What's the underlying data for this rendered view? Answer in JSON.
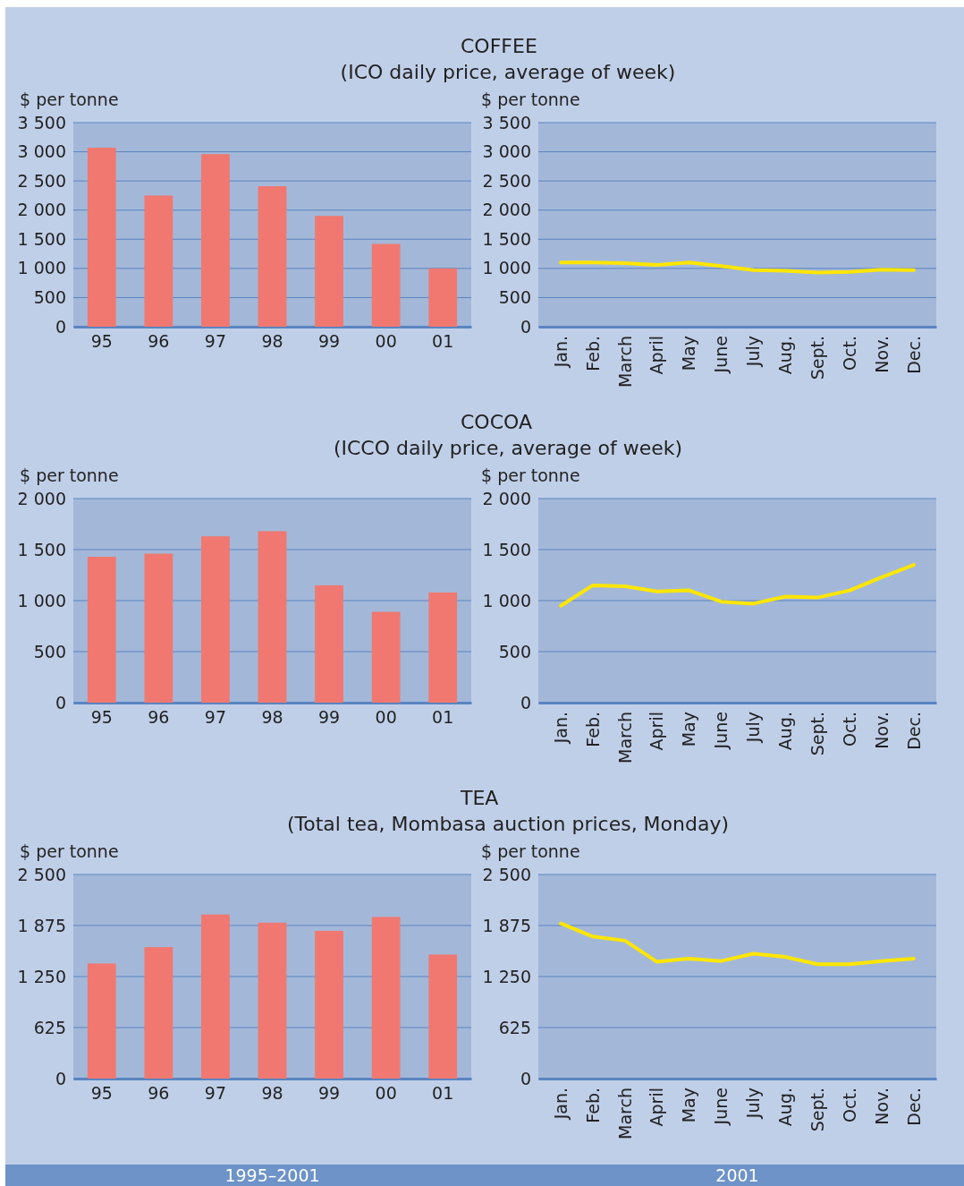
{
  "chart_data": [
    {
      "type": "bar",
      "title": "COFFEE",
      "subtitle": "(ICO daily price, average of week)",
      "ylabel": "$ per tonne",
      "categories": [
        "95",
        "96",
        "97",
        "98",
        "99",
        "00",
        "01"
      ],
      "values": [
        3070,
        2250,
        2960,
        2410,
        1900,
        1420,
        1000
      ],
      "color": "#f07870",
      "ylim": [
        0,
        3500
      ],
      "yticks": [
        0,
        500,
        {
          "value": 1000,
          "label": "1 000"
        },
        {
          "value": 1500,
          "label": "1 500"
        },
        {
          "value": 2000,
          "label": "2 000"
        },
        {
          "value": 2500,
          "label": "2 500"
        },
        {
          "value": 3000,
          "label": "3 000"
        },
        {
          "value": 3500,
          "label": "3 500"
        }
      ],
      "grid": "y"
    },
    {
      "type": "line",
      "ylabel": "$ per tonne",
      "categories": [
        "Jan.",
        "Feb.",
        "March",
        "April",
        "May",
        "June",
        "July",
        "Aug.",
        "Sept.",
        "Oct.",
        "Nov.",
        "Dec."
      ],
      "values": [
        1100,
        1100,
        1090,
        1060,
        1100,
        1040,
        970,
        960,
        930,
        940,
        980,
        970
      ],
      "color": "#ffe600",
      "ylim": [
        0,
        3500
      ],
      "yticks": [
        0,
        500,
        {
          "value": 1000,
          "label": "1 000"
        },
        {
          "value": 1500,
          "label": "1 500"
        },
        {
          "value": 2000,
          "label": "2 000"
        },
        {
          "value": 2500,
          "label": "2 500"
        },
        {
          "value": 3000,
          "label": "3 000"
        },
        {
          "value": 3500,
          "label": "3 500"
        }
      ],
      "grid": "y"
    },
    {
      "type": "bar",
      "title": "COCOA",
      "subtitle": "(ICCO daily price, average of week)",
      "ylabel": "$ per tonne",
      "categories": [
        "95",
        "96",
        "97",
        "98",
        "99",
        "00",
        "01"
      ],
      "values": [
        1430,
        1460,
        1630,
        1680,
        1150,
        890,
        1080
      ],
      "color": "#f07870",
      "ylim": [
        0,
        2000
      ],
      "yticks": [
        0,
        500,
        {
          "value": 1000,
          "label": "1 000"
        },
        {
          "value": 1500,
          "label": "1 500"
        },
        {
          "value": 2000,
          "label": "2 000"
        }
      ],
      "grid": "y"
    },
    {
      "type": "line",
      "ylabel": "$ per tonne",
      "categories": [
        "Jan.",
        "Feb.",
        "March",
        "April",
        "May",
        "June",
        "July",
        "Aug.",
        "Sept.",
        "Oct.",
        "Nov.",
        "Dec."
      ],
      "values": [
        950,
        1150,
        1140,
        1090,
        1100,
        990,
        970,
        1040,
        1030,
        1100,
        1230,
        1350
      ],
      "color": "#ffe600",
      "ylim": [
        0,
        2000
      ],
      "yticks": [
        0,
        500,
        {
          "value": 1000,
          "label": "1 000"
        },
        {
          "value": 1500,
          "label": "1 500"
        },
        {
          "value": 2000,
          "label": "2 000"
        }
      ],
      "grid": "y"
    },
    {
      "type": "bar",
      "title": "TEA",
      "subtitle": "(Total tea, Mombasa auction prices, Monday)",
      "ylabel": "$ per tonne",
      "categories": [
        "95",
        "96",
        "97",
        "98",
        "99",
        "00",
        "01"
      ],
      "values": [
        1410,
        1610,
        2010,
        1910,
        1810,
        1980,
        1520
      ],
      "color": "#f07870",
      "ylim": [
        0,
        2500
      ],
      "yticks": [
        0,
        625,
        {
          "value": 1250,
          "label": "1 250"
        },
        {
          "value": 1875,
          "label": "1 875"
        },
        {
          "value": 2500,
          "label": "2 500"
        }
      ],
      "grid": "y",
      "annotations": [
        "1995–2001"
      ]
    },
    {
      "type": "line",
      "ylabel": "$ per tonne",
      "categories": [
        "Jan.",
        "Feb.",
        "March",
        "April",
        "May",
        "June",
        "July",
        "Aug.",
        "Sept.",
        "Oct.",
        "Nov.",
        "Dec."
      ],
      "values": [
        1900,
        1740,
        1690,
        1430,
        1470,
        1440,
        1530,
        1490,
        1400,
        1400,
        1440,
        1470
      ],
      "color": "#ffe600",
      "ylim": [
        0,
        2500
      ],
      "yticks": [
        0,
        625,
        {
          "value": 1250,
          "label": "1 250"
        },
        {
          "value": 1875,
          "label": "1 875"
        },
        {
          "value": 2500,
          "label": "2 500"
        }
      ],
      "grid": "y",
      "annotations": [
        "2001"
      ]
    }
  ]
}
